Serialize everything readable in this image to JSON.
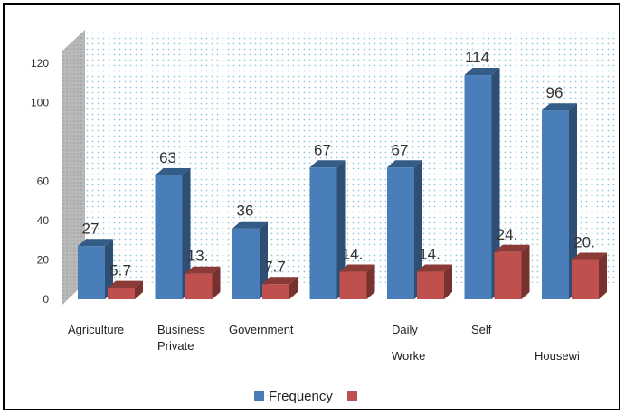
{
  "chart_data": {
    "type": "bar",
    "categories": [
      [
        "Agriculture"
      ],
      [
        "Business",
        "Private"
      ],
      [
        "Government"
      ],
      [
        ""
      ],
      [
        "Daily",
        "Worke"
      ],
      [
        "Self"
      ],
      [
        "Housewi"
      ]
    ],
    "series": [
      {
        "name": "Frequency",
        "color": "#4a7ebb",
        "values": [
          27,
          63,
          36,
          67,
          67,
          114,
          96
        ],
        "labels": [
          "27",
          "63",
          "36",
          "67",
          "67",
          "114",
          "96"
        ]
      },
      {
        "name": "",
        "color": "#c0504d",
        "values": [
          5.7,
          13,
          7.7,
          14,
          14,
          24,
          20
        ],
        "labels": [
          "5.7",
          "13.",
          "7.7",
          "14.",
          "14.",
          "24.",
          "20."
        ]
      }
    ],
    "yticks": [
      "0",
      "20",
      "40",
      "60",
      "100",
      "120"
    ],
    "ylim": [
      0,
      120
    ],
    "grid": "dotted",
    "legend": "bottom",
    "title": "",
    "xlabel": "",
    "ylabel": ""
  }
}
